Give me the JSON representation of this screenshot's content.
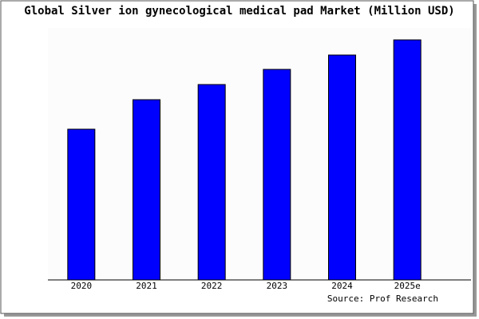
{
  "chart_data": {
    "type": "bar",
    "title": "Global Silver ion gynecological medical pad Market (Million USD)",
    "categories": [
      "2020",
      "2021",
      "2022",
      "2023",
      "2024",
      "2025e"
    ],
    "values": [
      189,
      226,
      245,
      264,
      282,
      301
    ],
    "color": "#0000ff",
    "source": "Source: Prof Research"
  }
}
